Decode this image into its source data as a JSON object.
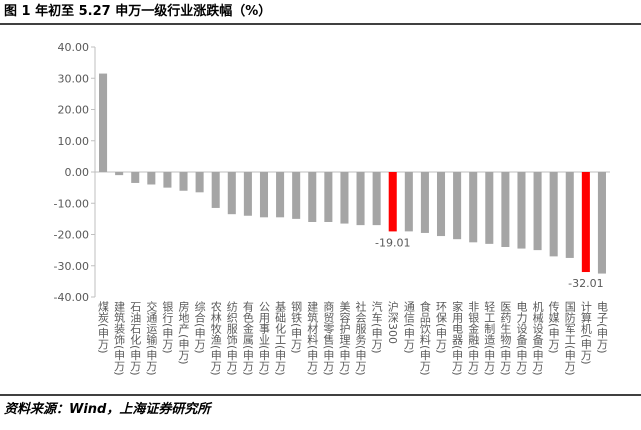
{
  "chart_data": {
    "type": "bar",
    "title": "图 1 年初至 5.27 申万一级行业涨跌幅（%）",
    "source": "资料来源：Wind，上海证券研究所",
    "categories": [
      "煤炭(申万)",
      "建筑装饰(申万)",
      "石油石化(申万)",
      "交通运输(申万)",
      "银行(申万)",
      "房地产(申万)",
      "综合(申万)",
      "农林牧渔(申万)",
      "纺织服饰(申万)",
      "有色金属(申万)",
      "公用事业(申万)",
      "基础化工(申万)",
      "钢铁(申万)",
      "建筑材料(申万)",
      "商贸零售(申万)",
      "美容护理(申万)",
      "社会服务(申万)",
      "汽车(申万)",
      "沪深300",
      "通信(申万)",
      "食品饮料(申万)",
      "环保(申万)",
      "家用电器(申万)",
      "非银金融(申万)",
      "轻工制造(申万)",
      "医药生物(申万)",
      "电力设备(申万)",
      "机械设备(申万)",
      "传媒(申万)",
      "国防军工(申万)",
      "计算机(申万)",
      "电子(申万)"
    ],
    "values": [
      31.5,
      -1,
      -3.5,
      -4,
      -5,
      -6,
      -6.5,
      -11.5,
      -13.5,
      -14,
      -14.5,
      -14.5,
      -15,
      -16,
      -16,
      -16.5,
      -17,
      -17,
      -19.01,
      -19,
      -19.5,
      -20.5,
      -21.5,
      -22.5,
      -23,
      -24,
      -24.5,
      -25,
      -27,
      -27.5,
      -32.01,
      -32.5
    ],
    "value_labels": [
      null,
      null,
      null,
      null,
      null,
      null,
      null,
      null,
      null,
      null,
      null,
      null,
      null,
      null,
      null,
      null,
      null,
      null,
      "-19.01",
      null,
      null,
      null,
      null,
      null,
      null,
      null,
      null,
      null,
      null,
      null,
      "-32.01",
      null
    ],
    "colors": [
      "#a5a5a5",
      "#a5a5a5",
      "#a5a5a5",
      "#a5a5a5",
      "#a5a5a5",
      "#a5a5a5",
      "#a5a5a5",
      "#a5a5a5",
      "#a5a5a5",
      "#a5a5a5",
      "#a5a5a5",
      "#a5a5a5",
      "#a5a5a5",
      "#a5a5a5",
      "#a5a5a5",
      "#a5a5a5",
      "#a5a5a5",
      "#a5a5a5",
      "#ff0000",
      "#a5a5a5",
      "#a5a5a5",
      "#a5a5a5",
      "#a5a5a5",
      "#a5a5a5",
      "#a5a5a5",
      "#a5a5a5",
      "#a5a5a5",
      "#a5a5a5",
      "#a5a5a5",
      "#a5a5a5",
      "#ff0000",
      "#a5a5a5"
    ],
    "ylim": [
      -40,
      40
    ],
    "yticks": [
      {
        "value": -40,
        "label": "-40.00"
      },
      {
        "value": -30,
        "label": "-30.00"
      },
      {
        "value": -20,
        "label": "-20.00"
      },
      {
        "value": -10,
        "label": "-10.00"
      },
      {
        "value": 0,
        "label": "0.00"
      },
      {
        "value": 10,
        "label": "10.00"
      },
      {
        "value": 20,
        "label": "20.00"
      },
      {
        "value": 30,
        "label": "30.00"
      },
      {
        "value": 40,
        "label": "40.00"
      }
    ],
    "grid": false
  }
}
